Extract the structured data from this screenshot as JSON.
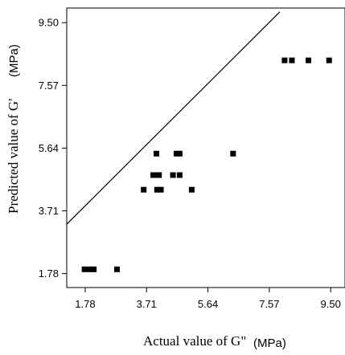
{
  "chart_data": {
    "type": "scatter",
    "xlabel": "Actual value of G\"",
    "xlabel_unit": "(MPa)",
    "ylabel": "Predicted value of G'",
    "ylabel_unit": "(MPa)",
    "xlim": [
      1.2,
      9.95
    ],
    "ylim": [
      1.35,
      9.95
    ],
    "xticks": [
      1.78,
      3.71,
      5.64,
      7.57,
      9.5
    ],
    "xtick_labels": [
      "1.78",
      "3.71",
      "5.64",
      "7.57",
      "9.50"
    ],
    "yticks": [
      1.78,
      3.71,
      5.64,
      7.57,
      9.5
    ],
    "ytick_labels": [
      "1.78",
      "3.71",
      "5.64",
      "7.57",
      "9.50"
    ],
    "grid": false,
    "reference_line": {
      "x": [
        1.2,
        7.9
      ],
      "y": [
        3.3,
        9.83
      ]
    },
    "points": [
      {
        "x": 1.76,
        "y": 1.91
      },
      {
        "x": 1.93,
        "y": 1.91
      },
      {
        "x": 2.05,
        "y": 1.91
      },
      {
        "x": 2.78,
        "y": 1.91
      },
      {
        "x": 3.62,
        "y": 4.36
      },
      {
        "x": 3.92,
        "y": 4.81
      },
      {
        "x": 4.02,
        "y": 4.81
      },
      {
        "x": 4.1,
        "y": 4.81
      },
      {
        "x": 4.02,
        "y": 5.47
      },
      {
        "x": 4.04,
        "y": 4.36
      },
      {
        "x": 4.16,
        "y": 4.36
      },
      {
        "x": 4.54,
        "y": 4.81
      },
      {
        "x": 4.65,
        "y": 5.47
      },
      {
        "x": 4.75,
        "y": 5.47
      },
      {
        "x": 4.75,
        "y": 4.81
      },
      {
        "x": 5.13,
        "y": 4.36
      },
      {
        "x": 6.43,
        "y": 5.47
      },
      {
        "x": 8.05,
        "y": 8.34
      },
      {
        "x": 8.28,
        "y": 8.34
      },
      {
        "x": 8.8,
        "y": 8.34
      },
      {
        "x": 9.45,
        "y": 8.34
      }
    ]
  }
}
